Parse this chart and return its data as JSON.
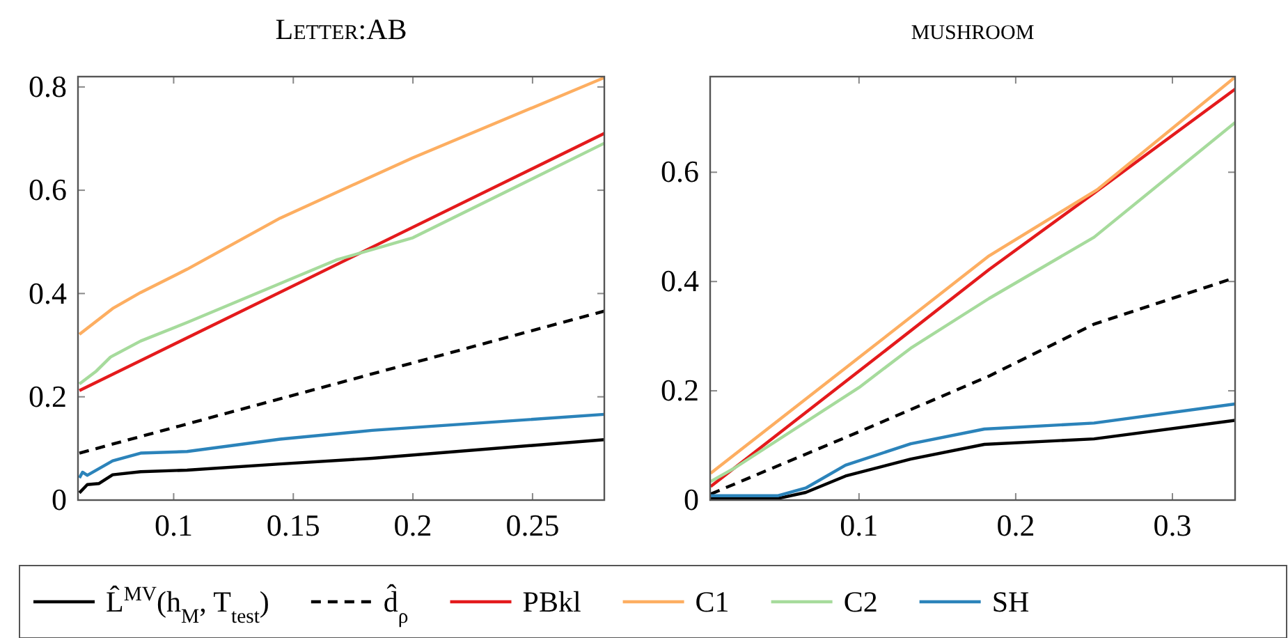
{
  "chart_data": [
    {
      "type": "line",
      "title": "Letter:AB",
      "xlim": [
        0.06,
        0.28
      ],
      "xticks": [
        0.1,
        0.15,
        0.2,
        0.25
      ],
      "ylim": [
        0,
        0.82
      ],
      "yticks": [
        0,
        0.2,
        0.4,
        0.6,
        0.8
      ],
      "legend": "bottom",
      "marker": "none",
      "series": [
        {
          "name": "L̂$^{MV}$(h$_{M}$, T$_{test}$)",
          "color": "#000000",
          "x": [
            0.0606,
            0.0639,
            0.0687,
            0.0745,
            0.0862,
            0.1056,
            0.1445,
            0.183,
            0.28
          ],
          "values": [
            0.014,
            0.03,
            0.032,
            0.049,
            0.055,
            0.058,
            0.07,
            0.081,
            0.117
          ]
        },
        {
          "name": "d̂$_{ρ}$",
          "color": "#000000",
          "line_style": "dashed",
          "x": [
            0.0606,
            0.28
          ],
          "values": [
            0.091,
            0.366
          ]
        },
        {
          "name": "PBkl",
          "color": "#e41a1c",
          "x": [
            0.0606,
            0.28
          ],
          "values": [
            0.212,
            0.71
          ]
        },
        {
          "name": "C1",
          "color": "#fdae61",
          "x": [
            0.0606,
            0.0745,
            0.0862,
            0.1056,
            0.1445,
            0.2,
            0.28
          ],
          "values": [
            0.321,
            0.371,
            0.402,
            0.447,
            0.546,
            0.663,
            0.818
          ]
        },
        {
          "name": "C2",
          "color": "#a6db9c",
          "x": [
            0.0606,
            0.0677,
            0.0736,
            0.0862,
            0.1056,
            0.168,
            0.2,
            0.28
          ],
          "values": [
            0.225,
            0.25,
            0.277,
            0.308,
            0.344,
            0.465,
            0.508,
            0.691
          ]
        },
        {
          "name": "SH",
          "color": "#2b83ba",
          "x": [
            0.0606,
            0.0619,
            0.0639,
            0.0745,
            0.0862,
            0.1056,
            0.1445,
            0.183,
            0.28
          ],
          "values": [
            0.043,
            0.054,
            0.048,
            0.076,
            0.091,
            0.094,
            0.118,
            0.135,
            0.166
          ]
        }
      ]
    },
    {
      "type": "line",
      "title": "mushroom",
      "xlim": [
        0.005,
        0.34
      ],
      "xticks": [
        0.1,
        0.2,
        0.3
      ],
      "ylim": [
        0,
        0.775
      ],
      "yticks": [
        0,
        0.2,
        0.4,
        0.6
      ],
      "marker": "none",
      "series": [
        {
          "color": "#000000",
          "x": [
            0.0053,
            0.0484,
            0.066,
            0.0914,
            0.133,
            0.18,
            0.25,
            0.34
          ],
          "values": [
            0.003,
            0.003,
            0.014,
            0.044,
            0.075,
            0.102,
            0.112,
            0.146
          ]
        },
        {
          "color": "#000000",
          "line_style": "dashed",
          "x": [
            0.0053,
            0.1,
            0.183,
            0.25,
            0.34
          ],
          "values": [
            0.011,
            0.125,
            0.227,
            0.322,
            0.407
          ]
        },
        {
          "color": "#e41a1c",
          "x": [
            0.0053,
            0.1,
            0.183,
            0.252,
            0.34
          ],
          "values": [
            0.025,
            0.236,
            0.422,
            0.566,
            0.752
          ]
        },
        {
          "color": "#fdae61",
          "x": [
            0.0053,
            0.1,
            0.183,
            0.252,
            0.34
          ],
          "values": [
            0.049,
            0.261,
            0.447,
            0.568,
            0.774
          ]
        },
        {
          "color": "#a6db9c",
          "x": [
            0.0053,
            0.0202,
            0.1,
            0.133,
            0.183,
            0.25,
            0.34
          ],
          "values": [
            0.034,
            0.058,
            0.206,
            0.278,
            0.369,
            0.481,
            0.691
          ]
        },
        {
          "color": "#2b83ba",
          "x": [
            0.0053,
            0.0484,
            0.066,
            0.0914,
            0.133,
            0.18,
            0.25,
            0.34
          ],
          "values": [
            0.008,
            0.008,
            0.022,
            0.064,
            0.103,
            0.13,
            0.141,
            0.176
          ]
        }
      ]
    }
  ]
}
